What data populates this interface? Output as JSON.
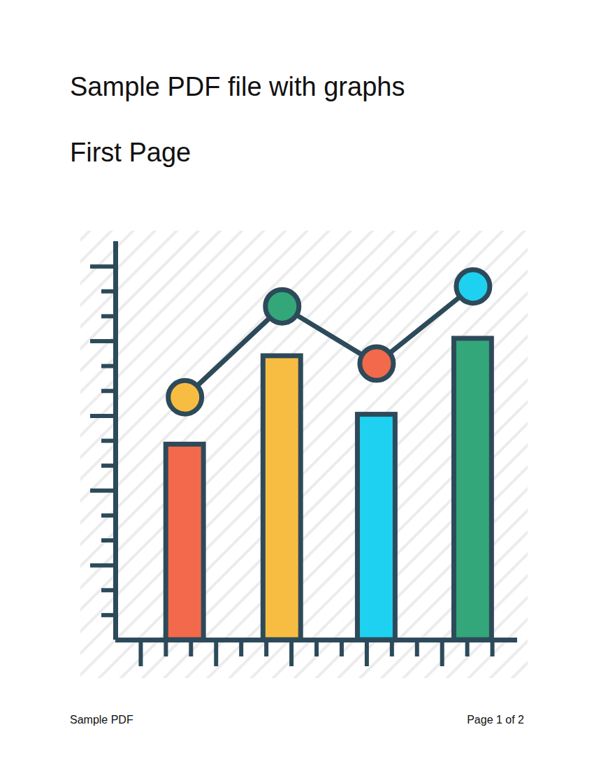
{
  "header": {
    "title": "Sample PDF file with graphs",
    "subtitle": "First Page"
  },
  "chart_data": {
    "type": "bar",
    "x": [
      2.76,
      6.63,
      10.39,
      14.23
    ],
    "xlim": [
      0,
      16
    ],
    "xticks": [
      1,
      2,
      3,
      4,
      5,
      6,
      7,
      8,
      9,
      10,
      11,
      12,
      13,
      14,
      15
    ],
    "ylim": [
      0,
      16
    ],
    "yticks": [
      1,
      2,
      3,
      4,
      5,
      6,
      7,
      8,
      9,
      10,
      11,
      12,
      13,
      14,
      15
    ],
    "tick_labels": false,
    "grid": false,
    "series": [
      {
        "type": "bar",
        "values": [
          7.85,
          11.4,
          9.05,
          12.1
        ],
        "colors": [
          "#f26a4b",
          "#f7bd42",
          "#1fd1f0",
          "#33a77a"
        ]
      },
      {
        "type": "line",
        "marker": "circle",
        "color": "#2d4a5a",
        "values": [
          9.75,
          13.4,
          11.1,
          14.2
        ],
        "colors": [
          "#f7bd42",
          "#33a77a",
          "#f26a4b",
          "#1fd1f0"
        ]
      }
    ]
  },
  "footer": {
    "left": "Sample PDF",
    "right": "Page 1 of 2"
  }
}
